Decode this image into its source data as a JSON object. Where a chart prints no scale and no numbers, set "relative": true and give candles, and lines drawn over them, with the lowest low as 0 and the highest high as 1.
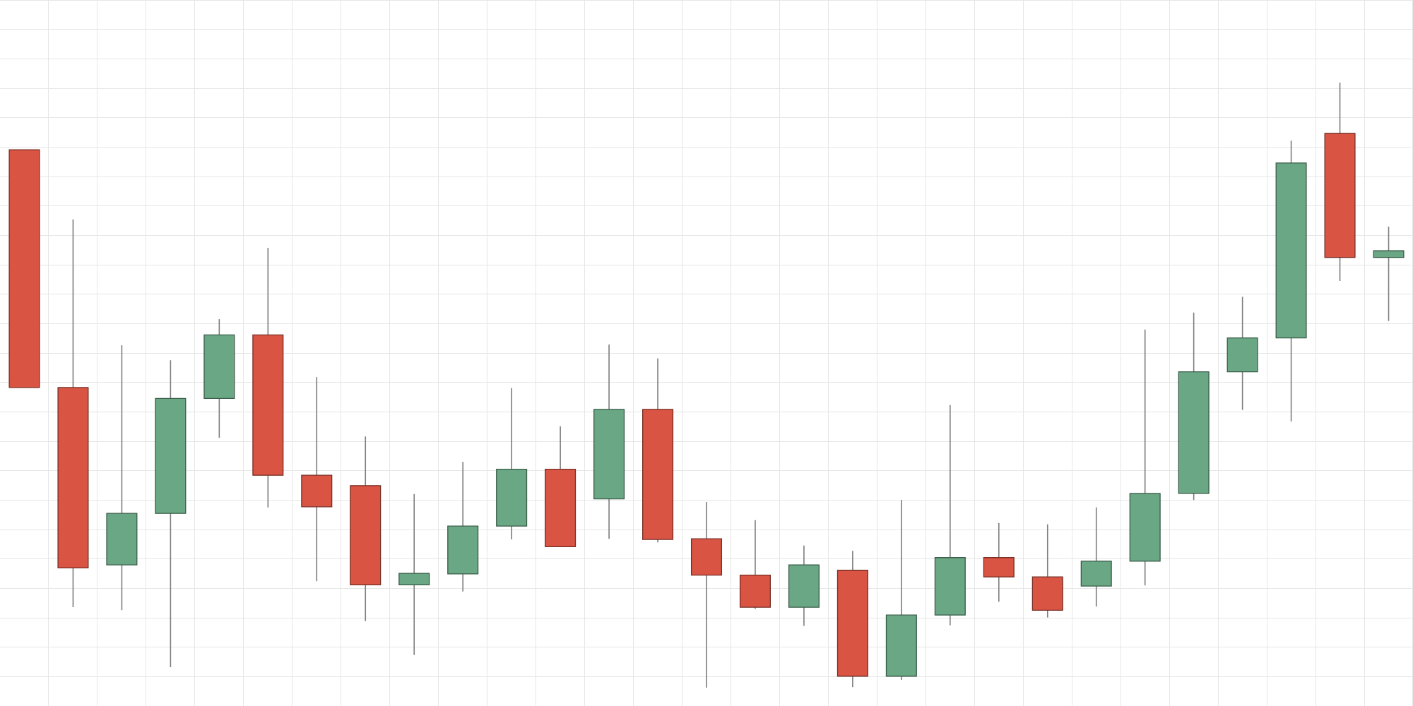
{
  "chart_data": {
    "type": "candlestick",
    "relative": true,
    "categories": [
      null,
      null,
      null,
      null,
      null,
      null,
      null,
      null,
      null,
      null,
      null,
      null,
      null,
      null,
      null,
      null,
      null,
      null,
      null,
      null,
      null,
      null,
      null,
      null,
      null,
      null,
      null,
      null,
      null
    ],
    "ohlc": [
      [
        0.889,
        0.889,
        0.496,
        0.496
      ],
      [
        0.496,
        0.774,
        0.133,
        0.198
      ],
      [
        0.203,
        0.566,
        0.128,
        0.288
      ],
      [
        0.288,
        0.541,
        0.034,
        0.478
      ],
      [
        0.478,
        0.609,
        0.413,
        0.583
      ],
      [
        0.583,
        0.727,
        0.298,
        0.351
      ],
      [
        0.351,
        0.513,
        0.176,
        0.299
      ],
      [
        0.334,
        0.415,
        0.11,
        0.17
      ],
      [
        0.17,
        0.32,
        0.054,
        0.189
      ],
      [
        0.188,
        0.373,
        0.159,
        0.267
      ],
      [
        0.267,
        0.495,
        0.245,
        0.361
      ],
      [
        0.361,
        0.432,
        0.233,
        0.233
      ],
      [
        0.312,
        0.567,
        0.246,
        0.46
      ],
      [
        0.46,
        0.544,
        0.24,
        0.245
      ],
      [
        0.246,
        0.307,
        0,
        0.186
      ],
      [
        0.186,
        0.277,
        0.13,
        0.133
      ],
      [
        0.133,
        0.235,
        0.102,
        0.203
      ],
      [
        0.194,
        0.226,
        0.001,
        0.019
      ],
      [
        0.019,
        0.31,
        0.013,
        0.12
      ],
      [
        0.12,
        0.467,
        0.103,
        0.215
      ],
      [
        0.215,
        0.272,
        0.142,
        0.183
      ],
      [
        0.183,
        0.27,
        0.116,
        0.128
      ],
      [
        0.168,
        0.298,
        0.134,
        0.209
      ],
      [
        0.209,
        0.592,
        0.169,
        0.321
      ],
      [
        0.321,
        0.62,
        0.31,
        0.522
      ],
      [
        0.522,
        0.646,
        0.459,
        0.578
      ],
      [
        0.578,
        0.904,
        0.44,
        0.867
      ],
      [
        0.916,
        1,
        0.672,
        0.711
      ],
      [
        0.711,
        0.762,
        0.606,
        0.722
      ]
    ],
    "colors": [
      "#d95443",
      "#d95443",
      "#6aa784",
      "#6aa784",
      "#6aa784",
      "#d95443",
      "#d95443",
      "#d95443",
      "#6aa784",
      "#6aa784",
      "#6aa784",
      "#d95443",
      "#6aa784",
      "#d95443",
      "#d95443",
      "#d95443",
      "#6aa784",
      "#d95443",
      "#6aa784",
      "#6aa784",
      "#d95443",
      "#d95443",
      "#6aa784",
      "#6aa784",
      "#6aa784",
      "#6aa784",
      "#6aa784",
      "#d95443",
      "#6aa784"
    ],
    "grid": true
  }
}
